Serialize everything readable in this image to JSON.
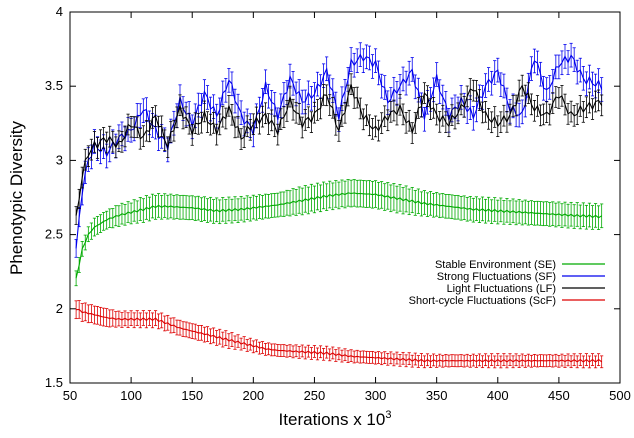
{
  "chart_data": {
    "type": "line",
    "title": "",
    "xlabel": "Iterations x 10",
    "xlabel_superscript": "3",
    "ylabel": "Phenotypic Diversity",
    "xlim": [
      50,
      500
    ],
    "ylim": [
      1.5,
      4
    ],
    "xticks": [
      "50",
      "100",
      "150",
      "200",
      "250",
      "300",
      "350",
      "400",
      "450",
      "500"
    ],
    "yticks": [
      "1.5",
      "2",
      "2.5",
      "3",
      "3.5",
      "4"
    ],
    "legend_position": "right",
    "error_bars": true,
    "series": [
      {
        "name": "Stable Environment (SE)",
        "color": "#00aa00",
        "x": [
          55,
          60,
          65,
          70,
          80,
          90,
          100,
          110,
          120,
          130,
          150,
          170,
          190,
          200,
          220,
          240,
          260,
          280,
          300,
          320,
          340,
          360,
          380,
          400,
          420,
          440,
          460,
          485
        ],
        "values": [
          2.2,
          2.4,
          2.5,
          2.55,
          2.6,
          2.63,
          2.65,
          2.67,
          2.69,
          2.69,
          2.68,
          2.66,
          2.67,
          2.68,
          2.7,
          2.73,
          2.76,
          2.78,
          2.77,
          2.74,
          2.71,
          2.69,
          2.67,
          2.66,
          2.65,
          2.64,
          2.63,
          2.62
        ],
        "error": [
          0.05,
          0.05,
          0.05,
          0.06,
          0.06,
          0.07,
          0.07,
          0.08,
          0.08,
          0.08,
          0.08,
          0.08,
          0.08,
          0.08,
          0.08,
          0.09,
          0.09,
          0.09,
          0.09,
          0.09,
          0.08,
          0.08,
          0.08,
          0.08,
          0.08,
          0.08,
          0.08,
          0.08
        ]
      },
      {
        "name": "Strong Fluctuations (SF)",
        "color": "#0000ee",
        "x": [
          55,
          60,
          65,
          70,
          80,
          90,
          100,
          110,
          120,
          130,
          140,
          150,
          160,
          170,
          180,
          190,
          200,
          210,
          220,
          230,
          240,
          250,
          260,
          270,
          280,
          290,
          300,
          310,
          320,
          330,
          340,
          350,
          360,
          370,
          380,
          390,
          400,
          410,
          420,
          430,
          440,
          450,
          460,
          470,
          485
        ],
        "values": [
          2.4,
          2.8,
          3.0,
          3.1,
          3.05,
          3.15,
          3.2,
          3.35,
          3.2,
          3.1,
          3.4,
          3.25,
          3.45,
          3.3,
          3.55,
          3.3,
          3.2,
          3.5,
          3.3,
          3.55,
          3.4,
          3.45,
          3.6,
          3.3,
          3.65,
          3.7,
          3.65,
          3.4,
          3.5,
          3.6,
          3.3,
          3.55,
          3.3,
          3.4,
          3.3,
          3.5,
          3.6,
          3.35,
          3.3,
          3.7,
          3.45,
          3.65,
          3.7,
          3.55,
          3.5
        ],
        "error": [
          0.06,
          0.07,
          0.08,
          0.08,
          0.08,
          0.08,
          0.08,
          0.08,
          0.08,
          0.08,
          0.08,
          0.08,
          0.08,
          0.08,
          0.08,
          0.08,
          0.08,
          0.08,
          0.08,
          0.08,
          0.08,
          0.08,
          0.08,
          0.08,
          0.08,
          0.08,
          0.08,
          0.08,
          0.08,
          0.08,
          0.08,
          0.08,
          0.08,
          0.08,
          0.08,
          0.08,
          0.08,
          0.08,
          0.08,
          0.08,
          0.08,
          0.08,
          0.08,
          0.08,
          0.08
        ]
      },
      {
        "name": "Light Fluctuations (LF)",
        "color": "#000000",
        "x": [
          55,
          60,
          65,
          70,
          80,
          90,
          100,
          110,
          120,
          130,
          140,
          150,
          160,
          170,
          180,
          190,
          200,
          210,
          220,
          230,
          240,
          250,
          260,
          270,
          280,
          290,
          300,
          310,
          320,
          330,
          340,
          350,
          360,
          370,
          380,
          390,
          400,
          410,
          420,
          430,
          440,
          450,
          460,
          470,
          485
        ],
        "values": [
          2.6,
          2.9,
          3.05,
          3.1,
          3.15,
          3.1,
          3.25,
          3.15,
          3.3,
          3.1,
          3.35,
          3.2,
          3.3,
          3.2,
          3.35,
          3.15,
          3.25,
          3.3,
          3.2,
          3.4,
          3.25,
          3.3,
          3.45,
          3.2,
          3.5,
          3.3,
          3.2,
          3.3,
          3.35,
          3.2,
          3.45,
          3.3,
          3.25,
          3.35,
          3.5,
          3.3,
          3.25,
          3.3,
          3.5,
          3.35,
          3.3,
          3.45,
          3.3,
          3.35,
          3.4
        ],
        "error": [
          0.06,
          0.07,
          0.07,
          0.07,
          0.07,
          0.07,
          0.07,
          0.07,
          0.07,
          0.07,
          0.07,
          0.07,
          0.07,
          0.07,
          0.07,
          0.07,
          0.07,
          0.07,
          0.07,
          0.07,
          0.07,
          0.07,
          0.07,
          0.07,
          0.07,
          0.07,
          0.07,
          0.07,
          0.07,
          0.07,
          0.07,
          0.07,
          0.07,
          0.07,
          0.07,
          0.07,
          0.07,
          0.07,
          0.07,
          0.07,
          0.07,
          0.07,
          0.07,
          0.07,
          0.07
        ]
      },
      {
        "name": "Short-cycle Fluctuations (ScF)",
        "color": "#dd0000",
        "x": [
          55,
          60,
          70,
          80,
          90,
          100,
          110,
          120,
          130,
          140,
          150,
          160,
          170,
          180,
          190,
          200,
          210,
          220,
          240,
          260,
          280,
          300,
          320,
          340,
          360,
          380,
          400,
          420,
          440,
          460,
          485
        ],
        "values": [
          2.0,
          1.98,
          1.96,
          1.94,
          1.93,
          1.93,
          1.93,
          1.93,
          1.9,
          1.87,
          1.85,
          1.83,
          1.81,
          1.79,
          1.77,
          1.75,
          1.73,
          1.72,
          1.71,
          1.7,
          1.68,
          1.67,
          1.66,
          1.65,
          1.65,
          1.65,
          1.65,
          1.65,
          1.65,
          1.65,
          1.65
        ],
        "error": [
          0.06,
          0.06,
          0.06,
          0.06,
          0.05,
          0.05,
          0.05,
          0.05,
          0.05,
          0.05,
          0.05,
          0.05,
          0.05,
          0.05,
          0.04,
          0.04,
          0.04,
          0.04,
          0.04,
          0.04,
          0.04,
          0.04,
          0.04,
          0.04,
          0.04,
          0.04,
          0.04,
          0.04,
          0.04,
          0.04,
          0.04
        ]
      }
    ]
  }
}
